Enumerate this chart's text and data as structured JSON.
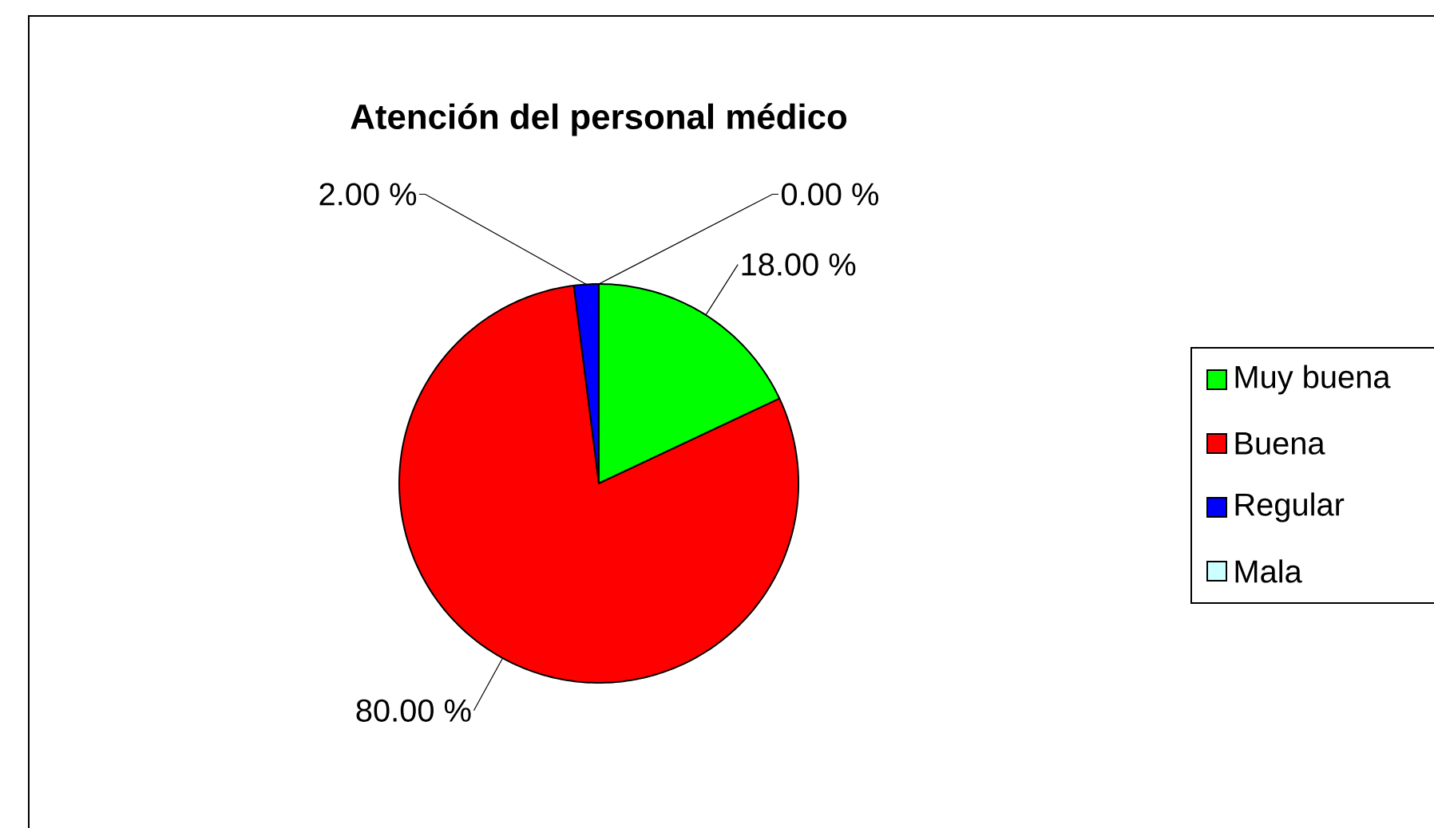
{
  "chart_data": {
    "type": "pie",
    "title": "Atención del personal médico",
    "categories": [
      "Muy buena",
      "Buena",
      "Regular",
      "Mala"
    ],
    "values": [
      18,
      80,
      2,
      0
    ],
    "value_labels": [
      "18.00 %",
      "80.00 %",
      "2.00 %",
      "0.00 %"
    ],
    "colors": [
      "#00ff00",
      "#ff0000",
      "#0000ff",
      "#ccffff"
    ],
    "legend": "right"
  }
}
